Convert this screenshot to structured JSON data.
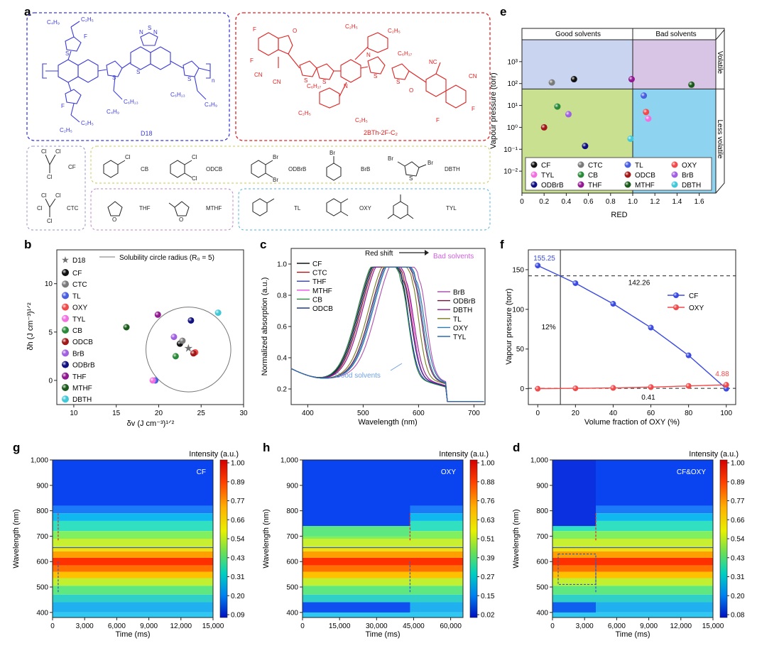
{
  "panel_labels": [
    "a",
    "b",
    "c",
    "d",
    "e",
    "f",
    "g",
    "h"
  ],
  "colors": {
    "CF": "#111111",
    "CTC": "#7a7a7a",
    "TL": "#4a5fe0",
    "OXY": "#f04a4a",
    "TYL": "#f070e0",
    "CB": "#2a8a3a",
    "ODCB": "#a01818",
    "BrB": "#a060e0",
    "ODBrB": "#101080",
    "THF": "#901890",
    "MTHF": "#1a5a1a",
    "DBTH": "#40c8d8",
    "polymer_blue": "#3b3bd6",
    "acceptor_red": "#e02020"
  },
  "panel_a": {
    "polymer_name": "D18",
    "acceptor_name": "2BTh-2F-C₂",
    "polymer_substituents": [
      "C₄H₉",
      "C₂H₅",
      "C₆H₁₃",
      "C₄H₉",
      "C₂H₅",
      "C₆H₁₃",
      "C₄H₉",
      "C₂H₅"
    ],
    "polymer_atoms": [
      "F",
      "F",
      "S",
      "S",
      "S",
      "S",
      "N",
      "N",
      "S",
      "n"
    ],
    "acceptor_labels": [
      "F",
      "F",
      "O",
      "O",
      "CN",
      "CN",
      "NC",
      "CN",
      "C₂H₅",
      "C₂H₅",
      "C₂H₅",
      "C₂H₅",
      "C₆H₁₇",
      "C₆H₁₇",
      "N",
      "N",
      "S",
      "S",
      "S",
      "S",
      "F",
      "F"
    ],
    "solvents": [
      {
        "abbr": "CF",
        "atoms": [
          "Cl",
          "Cl",
          "Cl"
        ]
      },
      {
        "abbr": "CTC",
        "atoms": [
          "Cl",
          "Cl",
          "Cl",
          "Cl"
        ]
      },
      {
        "abbr": "CB",
        "atoms": [
          "Cl"
        ]
      },
      {
        "abbr": "ODCB",
        "atoms": [
          "Cl",
          "Cl"
        ]
      },
      {
        "abbr": "ODBrB",
        "atoms": [
          "Br",
          "Br"
        ]
      },
      {
        "abbr": "BrB",
        "atoms": [
          "Br"
        ]
      },
      {
        "abbr": "DBTH",
        "atoms": [
          "Br",
          "Br",
          "S"
        ]
      },
      {
        "abbr": "THF",
        "atoms": [
          "O"
        ]
      },
      {
        "abbr": "MTHF",
        "atoms": [
          "O"
        ]
      },
      {
        "abbr": "TL",
        "atoms": []
      },
      {
        "abbr": "OXY",
        "atoms": []
      },
      {
        "abbr": "TYL",
        "atoms": []
      }
    ]
  },
  "chart_data": [
    {
      "id": "b",
      "type": "scatter",
      "xlabel": "δv (J cm⁻³)¹ᐟ²",
      "ylabel": "δh (J cm⁻³)¹ᐟ²",
      "xlim": [
        8,
        30
      ],
      "ylim": [
        -2.5,
        13.5
      ],
      "xticks": [
        "10",
        "15",
        "20",
        "25",
        "30"
      ],
      "yticks": [
        "0",
        "5",
        "10"
      ],
      "legend_star": "D18",
      "legend_circle": "Solubility circle radius (R₀ = 5)",
      "circle": {
        "center": [
          23.5,
          3.2
        ],
        "radius": 5
      },
      "star": [
        23.5,
        3.3
      ],
      "series": [
        {
          "name": "CF",
          "x": 22.5,
          "y": 3.8
        },
        {
          "name": "CTC",
          "x": 22.8,
          "y": 4.1
        },
        {
          "name": "TL",
          "x": 19.6,
          "y": 0.0
        },
        {
          "name": "OXY",
          "x": 24.3,
          "y": 2.9
        },
        {
          "name": "TYL",
          "x": 19.3,
          "y": 0.0
        },
        {
          "name": "CB",
          "x": 22.0,
          "y": 2.5
        },
        {
          "name": "ODCB",
          "x": 24.1,
          "y": 2.8
        },
        {
          "name": "BrB",
          "x": 21.8,
          "y": 4.5
        },
        {
          "name": "ODBrB",
          "x": 23.8,
          "y": 6.2
        },
        {
          "name": "THF",
          "x": 19.9,
          "y": 6.8
        },
        {
          "name": "MTHF",
          "x": 16.2,
          "y": 5.5
        },
        {
          "name": "DBTH",
          "x": 27.0,
          "y": 7.0
        }
      ]
    },
    {
      "id": "c",
      "type": "line",
      "xlabel": "Wavelength (nm)",
      "ylabel": "Normalized absorption (a.u.)",
      "xlim": [
        370,
        720
      ],
      "ylim": [
        0.1,
        1.1
      ],
      "xticks": [
        "400",
        "500",
        "600",
        "700"
      ],
      "yticks": [
        "0.2",
        "0.4",
        "0.6",
        "0.8",
        "1.0"
      ],
      "annotations": [
        "Red shift",
        "Bad solvents",
        "Good solvents"
      ],
      "series": [
        {
          "name": "CF",
          "peak": 568,
          "color": "#111111"
        },
        {
          "name": "CTC",
          "peak": 572,
          "color": "#a01818"
        },
        {
          "name": "THF",
          "peak": 566,
          "color": "#2a3ac8"
        },
        {
          "name": "MTHF",
          "peak": 575,
          "color": "#e050e0"
        },
        {
          "name": "CB",
          "peak": 566,
          "color": "#2a8a3a"
        },
        {
          "name": "ODCB",
          "peak": 570,
          "color": "#1a3a8a"
        },
        {
          "name": "BrB",
          "peak": 600,
          "color": "#b050b0"
        },
        {
          "name": "ODBrB",
          "peak": 590,
          "color": "#6a1040"
        },
        {
          "name": "DBTH",
          "peak": 575,
          "color": "#901890"
        },
        {
          "name": "TL",
          "peak": 586,
          "color": "#7a7a20"
        },
        {
          "name": "OXY",
          "peak": 592,
          "color": "#2a7ab0"
        },
        {
          "name": "TYL",
          "peak": 594,
          "color": "#2a6ab0"
        }
      ]
    },
    {
      "id": "d",
      "type": "scatter",
      "xlabel": "RED",
      "ylabel": "Vapour pressure (torr)",
      "xlim": [
        0,
        1.75
      ],
      "ylim_log10": [
        -3,
        4
      ],
      "xticks": [
        "0",
        "0.2",
        "0.4",
        "0.6",
        "0.8",
        "1.0",
        "1.2",
        "1.4",
        "1.6"
      ],
      "yticks": [
        "10⁻²",
        "10⁻¹",
        "10⁰",
        "10¹",
        "10²",
        "10³"
      ],
      "region_labels": [
        "Good solvents",
        "Bad solvents",
        "Volatile",
        "Less volatile"
      ],
      "series": [
        {
          "name": "CF",
          "x": 0.47,
          "logy": 2.2
        },
        {
          "name": "CTC",
          "x": 0.27,
          "logy": 2.05
        },
        {
          "name": "TL",
          "x": 1.1,
          "logy": 1.45
        },
        {
          "name": "OXY",
          "x": 1.12,
          "logy": 0.7
        },
        {
          "name": "TYL",
          "x": 1.14,
          "logy": 0.4
        },
        {
          "name": "CB",
          "x": 0.32,
          "logy": 0.95
        },
        {
          "name": "ODCB",
          "x": 0.2,
          "logy": 0.0
        },
        {
          "name": "BrB",
          "x": 0.42,
          "logy": 0.6
        },
        {
          "name": "ODBrB",
          "x": 0.57,
          "logy": -0.85
        },
        {
          "name": "THF",
          "x": 0.99,
          "logy": 2.2
        },
        {
          "name": "MTHF",
          "x": 1.53,
          "logy": 1.95
        },
        {
          "name": "DBTH",
          "x": 0.98,
          "logy": -0.52
        }
      ]
    },
    {
      "id": "e",
      "type": "line",
      "xlabel": "Volume fraction of OXY (%)",
      "ylabel": "Vapour pressure (torr)",
      "xlim": [
        -5,
        105
      ],
      "ylim": [
        -20,
        175
      ],
      "xticks": [
        "0",
        "20",
        "40",
        "60",
        "80",
        "100"
      ],
      "yticks": [
        "0",
        "50",
        "100",
        "150"
      ],
      "annotations": [
        "155.25",
        "142.26",
        "12%",
        "4.88",
        "0.41"
      ],
      "hlines": [
        142.26,
        0.41
      ],
      "vline": 12,
      "series": [
        {
          "name": "CF",
          "color": "#3b4be0",
          "x": [
            0,
            20,
            40,
            60,
            80,
            100
          ],
          "y": [
            155.25,
            133,
            107,
            77,
            42,
            0
          ]
        },
        {
          "name": "OXY",
          "color": "#f04a4a",
          "x": [
            0,
            20,
            40,
            60,
            80,
            100
          ],
          "y": [
            0,
            0.5,
            1.0,
            2.0,
            3.5,
            4.88
          ]
        }
      ]
    },
    {
      "id": "f",
      "type": "heatmap",
      "label": "CF",
      "xlabel": "Time (ms)",
      "ylabel": "Wavelength (nm)",
      "xlim": [
        0,
        15000
      ],
      "ylim": [
        380,
        1000
      ],
      "xticks": [
        "0",
        "3,000",
        "6,000",
        "9,000",
        "12,000",
        "15,000"
      ],
      "yticks": [
        "400",
        "500",
        "600",
        "700",
        "800",
        "900",
        "1,000"
      ],
      "colorbar_title": "Intensity (a.u.)",
      "colorbar_ticks": [
        "1.00",
        "0.89",
        "0.77",
        "0.66",
        "0.54",
        "0.43",
        "0.31",
        "0.20",
        "0.09"
      ]
    },
    {
      "id": "g",
      "type": "heatmap",
      "label": "OXY",
      "xlabel": "Time (ms)",
      "ylabel": "Wavelength (nm)",
      "xlim": [
        0,
        65000
      ],
      "ylim": [
        380,
        1000
      ],
      "xticks": [
        "0",
        "15,000",
        "30,000",
        "45,000",
        "60,000"
      ],
      "yticks": [
        "400",
        "500",
        "600",
        "700",
        "800",
        "900",
        "1,000"
      ],
      "colorbar_title": "Intensity (a.u.)",
      "colorbar_ticks": [
        "1.00",
        "0.88",
        "0.76",
        "0.63",
        "0.51",
        "0.39",
        "0.27",
        "0.15",
        "0.02"
      ]
    },
    {
      "id": "h",
      "type": "heatmap",
      "label": "CF&OXY",
      "xlabel": "Time (ms)",
      "ylabel": "Wavelength (nm)",
      "xlim": [
        0,
        15000
      ],
      "ylim": [
        380,
        1000
      ],
      "xticks": [
        "0",
        "3,000",
        "6,000",
        "9,000",
        "12,000",
        "15,000"
      ],
      "yticks": [
        "400",
        "500",
        "600",
        "700",
        "800",
        "900",
        "1,000"
      ],
      "colorbar_title": "Intensity (a.u.)",
      "colorbar_ticks": [
        "1.00",
        "0.89",
        "0.77",
        "0.66",
        "0.54",
        "0.43",
        "0.31",
        "0.20",
        "0.08"
      ]
    }
  ]
}
